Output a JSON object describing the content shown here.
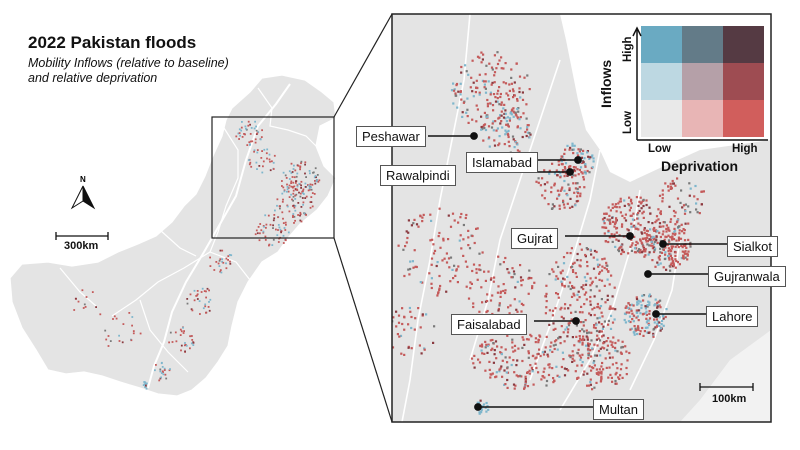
{
  "title": "2022 Pakistan floods",
  "subtitle_line1": "Mobility Inflows (relative to baseline)",
  "subtitle_line2": "and relative deprivation",
  "north_letter": "N",
  "scale_national": "300km",
  "scale_inset": "100km",
  "cities": [
    {
      "name": "Peshawar"
    },
    {
      "name": "Islamabad"
    },
    {
      "name": "Rawalpindi"
    },
    {
      "name": "Gujrat"
    },
    {
      "name": "Sialkot"
    },
    {
      "name": "Gujranwala"
    },
    {
      "name": "Faisalabad"
    },
    {
      "name": "Lahore"
    },
    {
      "name": "Multan"
    }
  ],
  "legend": {
    "y_title": "Inflows",
    "x_title": "Deprivation",
    "y_high": "High",
    "y_low": "Low",
    "x_low": "Low",
    "x_high": "High",
    "colors": [
      [
        "#6aaac2",
        "#637b88",
        "#553a43"
      ],
      [
        "#bdd8e2",
        "#b5a0a8",
        "#9e4c52"
      ],
      [
        "#e9e9e9",
        "#e8b5b5",
        "#d15e5c"
      ]
    ]
  },
  "colors": {
    "land": "#e4e4e4",
    "border": "#ffffff",
    "river": "#ffffff",
    "frame": "#222222",
    "blue": "#7eb6cc",
    "red": "#c45a5a",
    "darkred": "#8a3a40",
    "grey": "#7a7a7a"
  }
}
